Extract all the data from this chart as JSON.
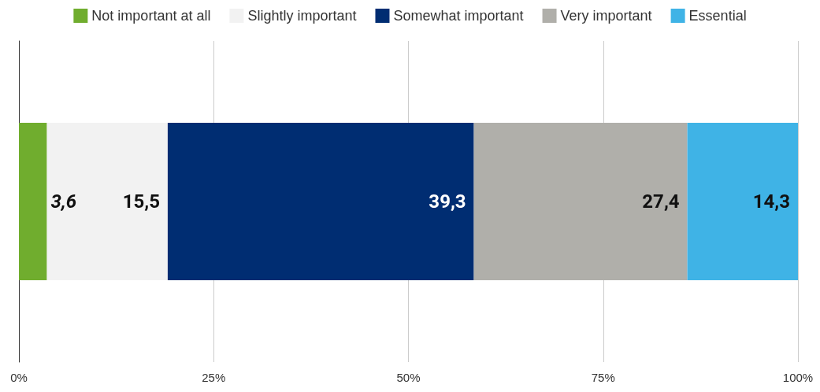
{
  "chart_data": {
    "type": "bar",
    "orientation": "horizontal",
    "stacked": true,
    "categories": [
      null
    ],
    "series": [
      {
        "name": "Not important at all",
        "color": "#70ad2e",
        "values": [
          3.6
        ],
        "value_labels": [
          "3,6"
        ]
      },
      {
        "name": "Slightly important",
        "color": "#f2f2f2",
        "values": [
          15.5
        ],
        "value_labels": [
          "15,5"
        ]
      },
      {
        "name": "Somewhat important",
        "color": "#002d72",
        "values": [
          39.3
        ],
        "value_labels": [
          "39,3"
        ]
      },
      {
        "name": "Very important",
        "color": "#b0afaa",
        "values": [
          27.4
        ],
        "value_labels": [
          "27,4"
        ]
      },
      {
        "name": "Essential",
        "color": "#3fb3e6",
        "values": [
          14.3
        ],
        "value_labels": [
          "14,3"
        ]
      }
    ],
    "xlim": [
      0,
      100
    ],
    "xticks": [
      {
        "value": 0,
        "label": "0%"
      },
      {
        "value": 25,
        "label": "25%"
      },
      {
        "value": 50,
        "label": "50%"
      },
      {
        "value": 75,
        "label": "75%"
      },
      {
        "value": 100,
        "label": "100%"
      }
    ],
    "grid": "x",
    "legend": "top"
  }
}
